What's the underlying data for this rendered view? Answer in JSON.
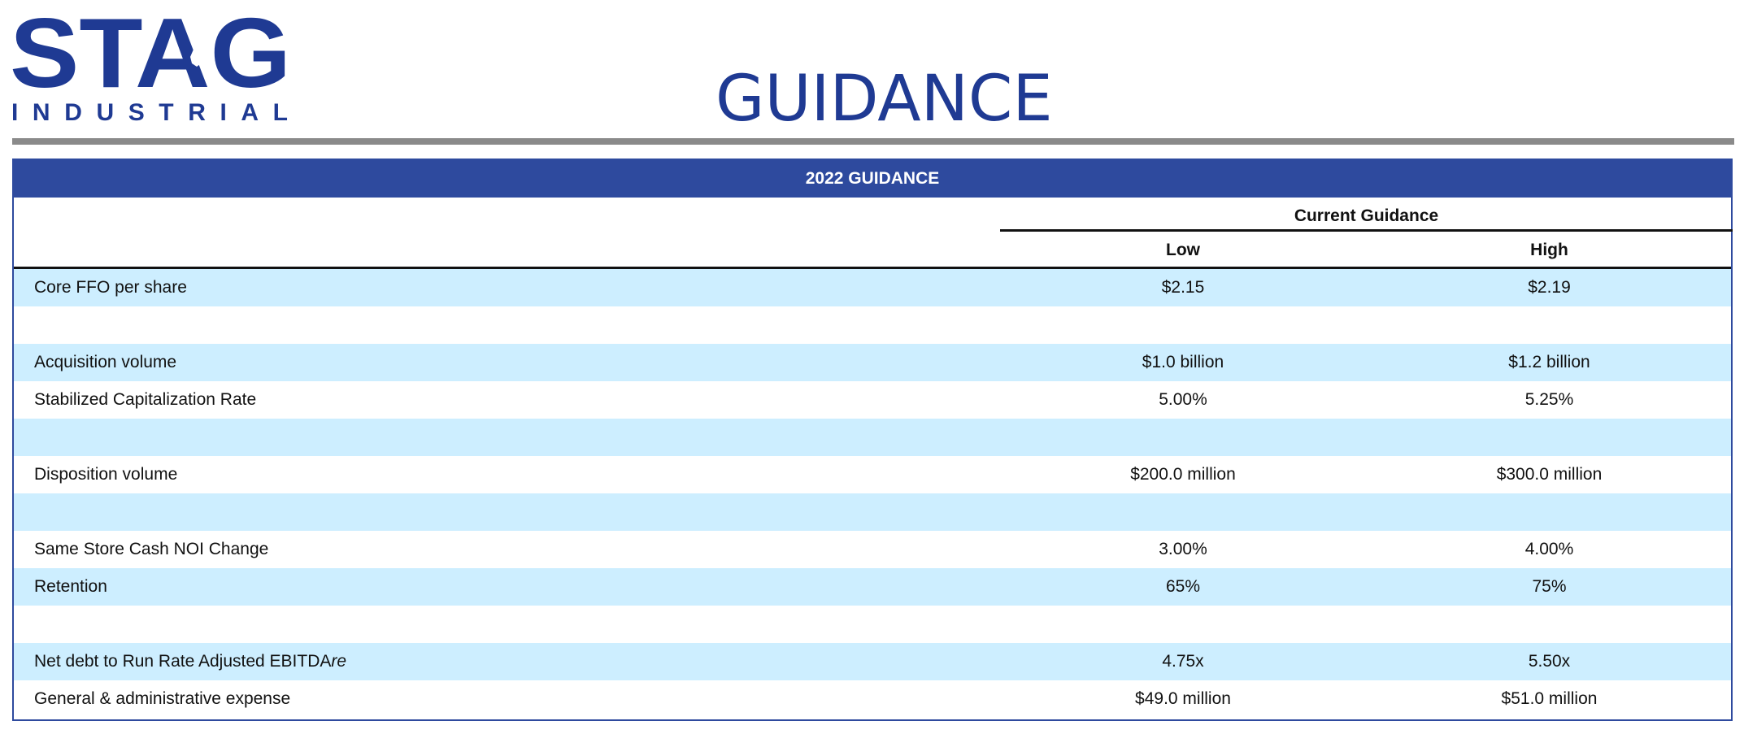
{
  "logo": {
    "wordmark": "STAG",
    "subtitle": "INDUSTRIAL",
    "brand_color": "#1f3a93"
  },
  "page": {
    "title": "GUIDANCE",
    "title_color": "#1f3a93",
    "rule_color": "#8a8a8a"
  },
  "table": {
    "banner": "2022 GUIDANCE",
    "banner_color": "#2e4a9e",
    "group_header": "Current Guidance",
    "columns": {
      "low": "Low",
      "high": "High"
    },
    "shade_color": "#cdeeff",
    "rows": [
      {
        "label": "Core FFO per share",
        "low": "$2.15",
        "high": "$2.19"
      },
      {
        "label": "",
        "low": "",
        "high": ""
      },
      {
        "label": "Acquisition volume",
        "low": "$1.0 billion",
        "high": "$1.2 billion"
      },
      {
        "label": "Stabilized Capitalization Rate",
        "low": "5.00%",
        "high": "5.25%"
      },
      {
        "label": "",
        "low": "",
        "high": ""
      },
      {
        "label": "Disposition volume",
        "low": "$200.0 million",
        "high": "$300.0 million"
      },
      {
        "label": "",
        "low": "",
        "high": ""
      },
      {
        "label": "Same Store Cash NOI Change",
        "low": "3.00%",
        "high": "4.00%"
      },
      {
        "label": "Retention",
        "low": "65%",
        "high": "75%"
      },
      {
        "label": "",
        "low": "",
        "high": ""
      },
      {
        "label": "Net debt to Run Rate Adjusted EBITDA",
        "label_suffix": "re",
        "low": "4.75x",
        "high": "5.50x"
      },
      {
        "label": "General & administrative expense",
        "low": "$49.0 million",
        "high": "$51.0 million"
      }
    ]
  }
}
